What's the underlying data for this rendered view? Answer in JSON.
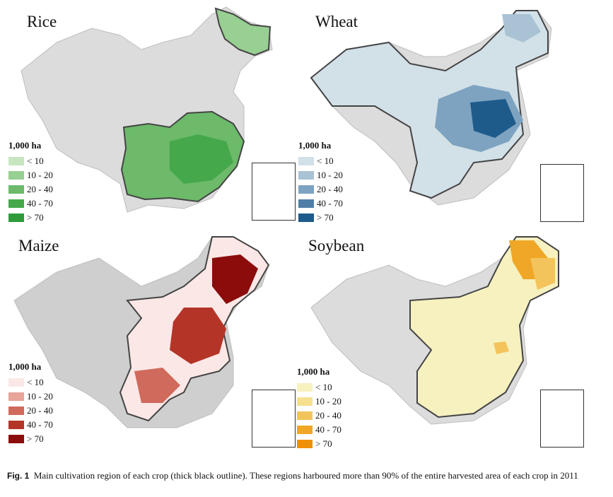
{
  "panels": [
    {
      "title": "Rice",
      "legend_title": "1,000 ha",
      "legend": [
        "< 10",
        "10 - 20",
        "20 - 40",
        "40 - 70",
        "> 70"
      ],
      "colors": [
        "#c7e6c0",
        "#98cf92",
        "#6cba6a",
        "#45a84a",
        "#2e9a3a"
      ]
    },
    {
      "title": "Wheat",
      "legend_title": "1,000 ha",
      "legend": [
        "< 10",
        "10 - 20",
        "20 - 40",
        "40 - 70",
        "> 70"
      ],
      "colors": [
        "#d2e0e8",
        "#a9c2d4",
        "#7ea3c0",
        "#4f7fa7",
        "#1f5b8a"
      ]
    },
    {
      "title": "Maize",
      "legend_title": "1,000 ha",
      "legend": [
        "< 10",
        "10 - 20",
        "20 - 40",
        "40 - 70",
        "> 70"
      ],
      "colors": [
        "#fbe8e6",
        "#e8a39a",
        "#d06a5c",
        "#b43528",
        "#8c0c0c"
      ]
    },
    {
      "title": "Soybean",
      "legend_title": "1,000 ha",
      "legend": [
        "< 10",
        "10 - 20",
        "20 - 40",
        "40 - 70",
        "> 70"
      ],
      "colors": [
        "#f6f1bf",
        "#f6df8f",
        "#f3c45c",
        "#f0a626",
        "#ee8f0a"
      ]
    }
  ],
  "caption": {
    "label": "Fig. 1",
    "text": "Main cultivation region of each crop (thick black outline). These regions harboured more than 90% of the entire harvested area of each crop in 2011"
  },
  "base_color": "#dcdcdc"
}
